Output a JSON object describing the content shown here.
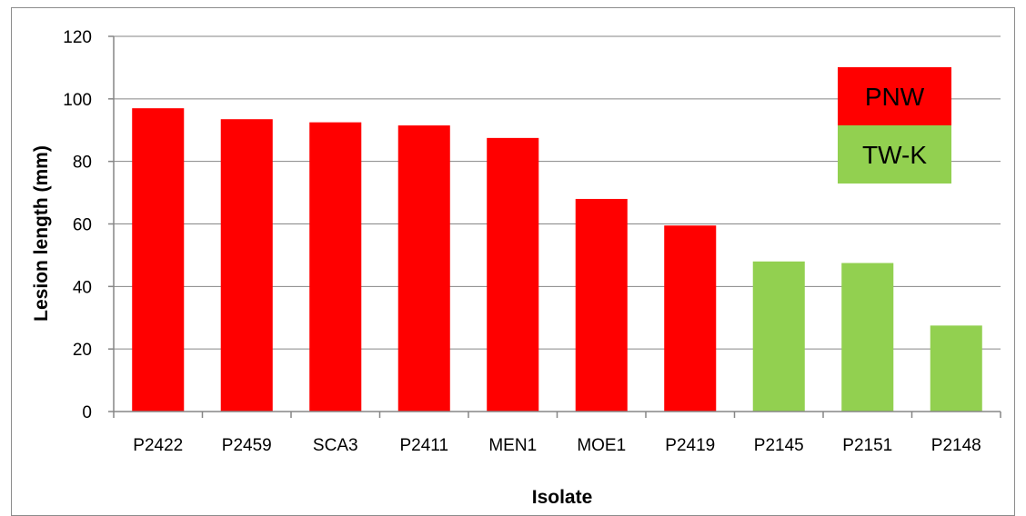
{
  "chart_data": {
    "type": "bar",
    "xlabel": "Isolate",
    "ylabel": "Lesion length (mm)",
    "ylim": [
      0,
      120
    ],
    "yticks": [
      0,
      20,
      40,
      60,
      80,
      100,
      120
    ],
    "grid": true,
    "legend_placement": "top-right",
    "categories": [
      "P2422",
      "P2459",
      "SCA3",
      "P2411",
      "MEN1",
      "MOE1",
      "P2419",
      "P2145",
      "P2151",
      "P2148"
    ],
    "values": [
      97,
      93.5,
      92.5,
      91.5,
      87.5,
      68,
      59.5,
      48,
      47.5,
      27.5
    ],
    "groups": [
      "PNW",
      "PNW",
      "PNW",
      "PNW",
      "PNW",
      "PNW",
      "PNW",
      "TW-K",
      "TW-K",
      "TW-K"
    ],
    "legend": [
      {
        "name": "PNW",
        "color": "#ff0000"
      },
      {
        "name": "TW-K",
        "color": "#92d050"
      }
    ]
  }
}
